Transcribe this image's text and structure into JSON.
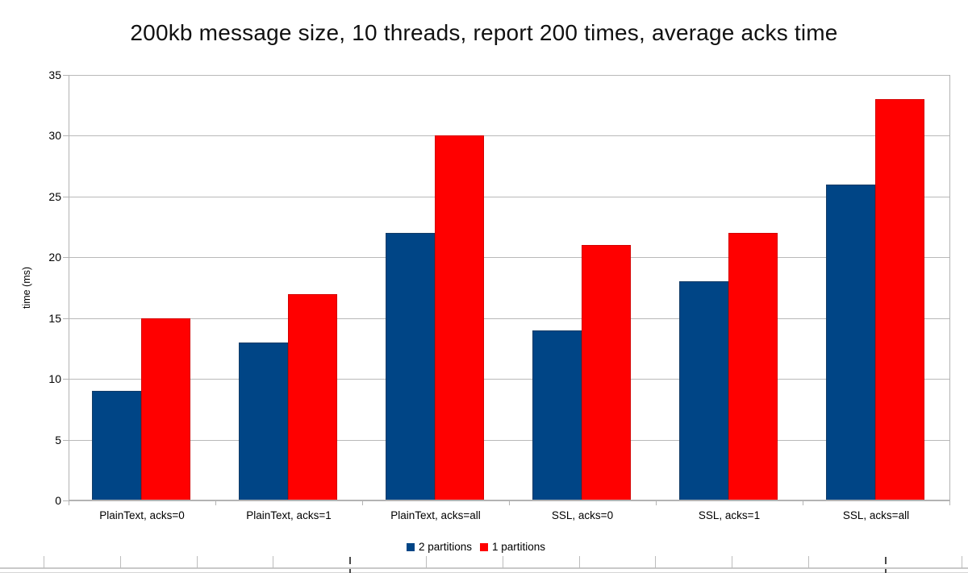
{
  "chart_data": {
    "type": "bar",
    "title": "200kb message size, 10 threads, report 200 times, average acks time",
    "xlabel": "",
    "ylabel": "time (ms)",
    "ylim": [
      0,
      35
    ],
    "ytick_interval": 5,
    "grid": "horizontal",
    "legend_position": "bottom-center",
    "categories": [
      "PlainText, acks=0",
      "PlainText, acks=1",
      "PlainText, acks=all",
      "SSL, acks=0",
      "SSL, acks=1",
      "SSL, acks=all"
    ],
    "series": [
      {
        "name": "2 partitions",
        "color": "#004586",
        "border_color": "#123c66",
        "values": [
          9,
          13,
          22,
          14,
          18,
          26
        ]
      },
      {
        "name": "1 partitions",
        "color": "#ff0000",
        "border_color": "#d40000",
        "values": [
          15,
          17,
          30,
          21,
          22,
          33
        ]
      }
    ]
  },
  "colors": {
    "background": "#ffffff",
    "gridline": "#b9b9b9",
    "axis": "#b3b3b3",
    "text": "#000000"
  }
}
